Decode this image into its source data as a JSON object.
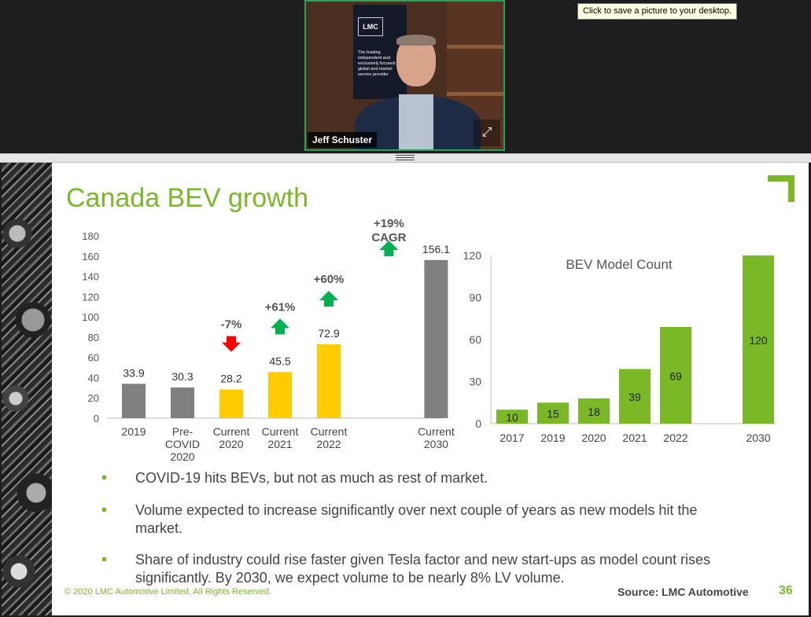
{
  "video": {
    "participant_name": "Jeff Schuster",
    "banner_logo": "LMC",
    "banner_text": "The leading independent and exclusively focused global and market service provider",
    "expand_icon": "expand-icon"
  },
  "tooltip": {
    "text": "Click to save a picture to your desktop."
  },
  "slide": {
    "title": "Canada BEV growth",
    "bullets": [
      "COVID-19 hits BEVs, but not as much as rest of market.",
      "Volume expected to increase significantly over next couple of years as new models hit the market.",
      "Share of industry could rise faster given Tesla factor and new start-ups as model count rises significantly. By 2030, we expect volume to be nearly 8% LV volume."
    ],
    "copyright": "© 2020 LMC Automotive Limited, All Rights Reserved.",
    "source": "Source: LMC Automotive",
    "page_number": "36",
    "colors": {
      "accent": "#7ab828",
      "gray_bar": "#808080",
      "yellow_bar": "#ffcc00",
      "up_arrow": "#00b050",
      "down_arrow": "#ff0000"
    }
  },
  "chart_data": [
    {
      "type": "bar",
      "title": "",
      "categories": [
        [
          "2019"
        ],
        [
          "Pre-",
          "COVID",
          "2020"
        ],
        [
          "Current",
          "2020"
        ],
        [
          "Current",
          "2021"
        ],
        [
          "Current",
          "2022"
        ],
        [
          "Current",
          "2030"
        ]
      ],
      "values": [
        33.9,
        30.3,
        28.2,
        45.5,
        72.9,
        156.1
      ],
      "labels": [
        "33.9",
        "30.3",
        "28.2",
        "45.5",
        "72.9",
        "156.1"
      ],
      "bar_colors": [
        "#808080",
        "#808080",
        "#ffcc00",
        "#ffcc00",
        "#ffcc00",
        "#808080"
      ],
      "ylim": [
        0,
        180
      ],
      "yticks": [
        0,
        20,
        40,
        60,
        80,
        100,
        120,
        140,
        160,
        180
      ],
      "annotations": [
        {
          "category_index": 2,
          "lines": [
            "-7%"
          ],
          "arrow": "down"
        },
        {
          "category_index": 3,
          "lines": [
            "+61%"
          ],
          "arrow": "up"
        },
        {
          "category_index": 4,
          "lines": [
            "+60%"
          ],
          "arrow": "up"
        },
        {
          "category_index": 5,
          "lines": [
            "+19%",
            "CAGR"
          ],
          "arrow": "up"
        }
      ],
      "grid": false
    },
    {
      "type": "bar",
      "title": "BEV Model Count",
      "categories": [
        "2017",
        "2019",
        "2020",
        "2021",
        "2022",
        "2030"
      ],
      "values": [
        10,
        15,
        18,
        39,
        69,
        120
      ],
      "labels": [
        "10",
        "15",
        "18",
        "39",
        "69",
        "120"
      ],
      "bar_color": "#7ab828",
      "ylim": [
        0,
        120
      ],
      "yticks": [
        0,
        30,
        60,
        90,
        120
      ],
      "grid": false
    }
  ]
}
